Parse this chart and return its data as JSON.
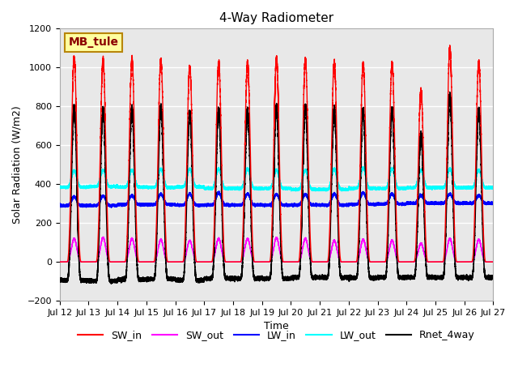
{
  "title": "4-Way Radiometer",
  "xlabel": "Time",
  "ylabel": "Solar Radiation (W/m2)",
  "ylim": [
    -200,
    1200
  ],
  "station_label": "MB_tule",
  "legend": [
    "SW_in",
    "SW_out",
    "LW_in",
    "LW_out",
    "Rnet_4way"
  ],
  "line_colors": [
    "red",
    "magenta",
    "blue",
    "cyan",
    "black"
  ],
  "line_widths": [
    1.0,
    1.0,
    1.0,
    1.0,
    1.2
  ],
  "xtick_labels": [
    "Jul 12",
    "Jul 13",
    "Jul 14",
    "Jul 15",
    "Jul 16",
    "Jul 17",
    "Jul 18",
    "Jul 19",
    "Jul 20",
    "Jul 21",
    "Jul 22",
    "Jul 23",
    "Jul 24",
    "Jul 25",
    "Jul 26",
    "Jul 27"
  ],
  "n_days": 15,
  "points_per_day": 1440,
  "SW_in_peak": [
    1050,
    1040,
    1040,
    1040,
    1005,
    1025,
    1025,
    1045,
    1040,
    1025,
    1020,
    1020,
    880,
    1100,
    1025
  ],
  "SW_out_peak": [
    120,
    125,
    120,
    115,
    110,
    120,
    120,
    125,
    120,
    110,
    115,
    110,
    95,
    120,
    115
  ],
  "LW_in_night": [
    290,
    290,
    295,
    295,
    292,
    293,
    293,
    292,
    293,
    292,
    296,
    298,
    302,
    302,
    302
  ],
  "LW_in_day": [
    335,
    340,
    342,
    350,
    350,
    355,
    350,
    348,
    348,
    350,
    355,
    350,
    342,
    350,
    342
  ],
  "LW_out_night": [
    385,
    388,
    385,
    383,
    386,
    378,
    378,
    378,
    373,
    373,
    378,
    378,
    382,
    382,
    382
  ],
  "LW_out_day": [
    468,
    472,
    472,
    478,
    478,
    478,
    478,
    472,
    472,
    478,
    482,
    478,
    472,
    478,
    472
  ],
  "background_color": "#ffffff",
  "plot_bg_color": "#e8e8e8",
  "title_fontsize": 11,
  "label_fontsize": 9,
  "tick_fontsize": 8,
  "legend_fontsize": 9
}
